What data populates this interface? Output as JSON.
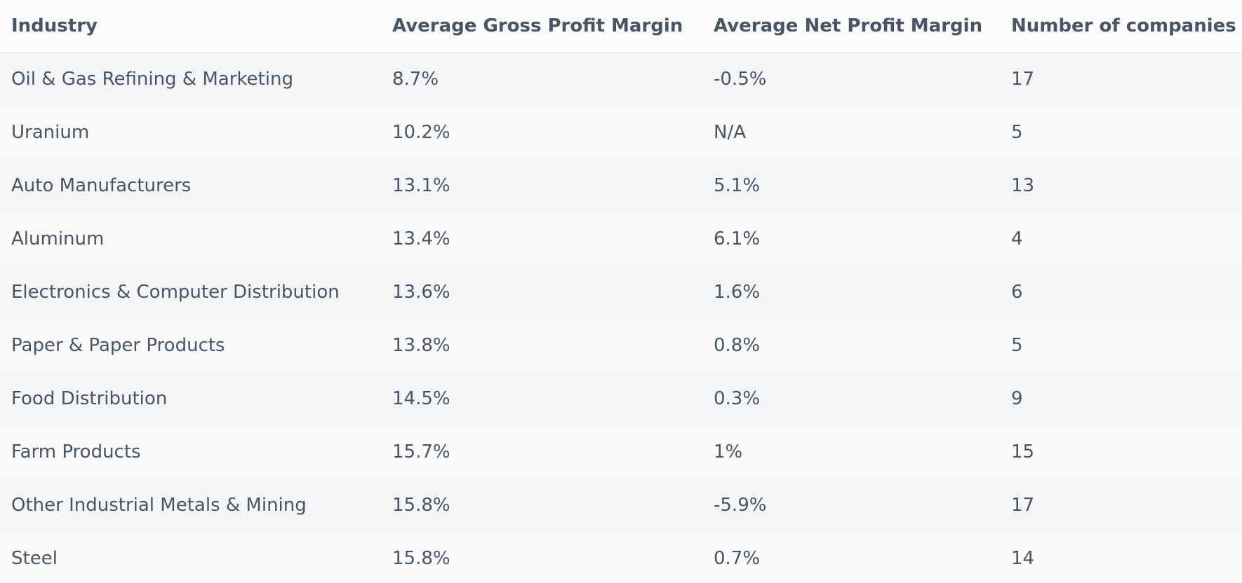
{
  "table": {
    "headers": [
      "Industry",
      "Average Gross Profit Margin",
      "Average Net Profit Margin",
      "Number of companies"
    ],
    "rows": [
      [
        "Oil & Gas Refining & Marketing",
        "8.7%",
        "-0.5%",
        "17"
      ],
      [
        "Uranium",
        "10.2%",
        "N/A",
        "5"
      ],
      [
        "Auto Manufacturers",
        "13.1%",
        "5.1%",
        "13"
      ],
      [
        "Aluminum",
        "13.4%",
        "6.1%",
        "4"
      ],
      [
        "Electronics & Computer Distribution",
        "13.6%",
        "1.6%",
        "6"
      ],
      [
        "Paper & Paper Products",
        "13.8%",
        "0.8%",
        "5"
      ],
      [
        "Food Distribution",
        "14.5%",
        "0.3%",
        "9"
      ],
      [
        "Farm Products",
        "15.7%",
        "1%",
        "15"
      ],
      [
        "Other Industrial Metals & Mining",
        "15.8%",
        "-5.9%",
        "17"
      ],
      [
        "Steel",
        "15.8%",
        "0.7%",
        "14"
      ]
    ]
  }
}
